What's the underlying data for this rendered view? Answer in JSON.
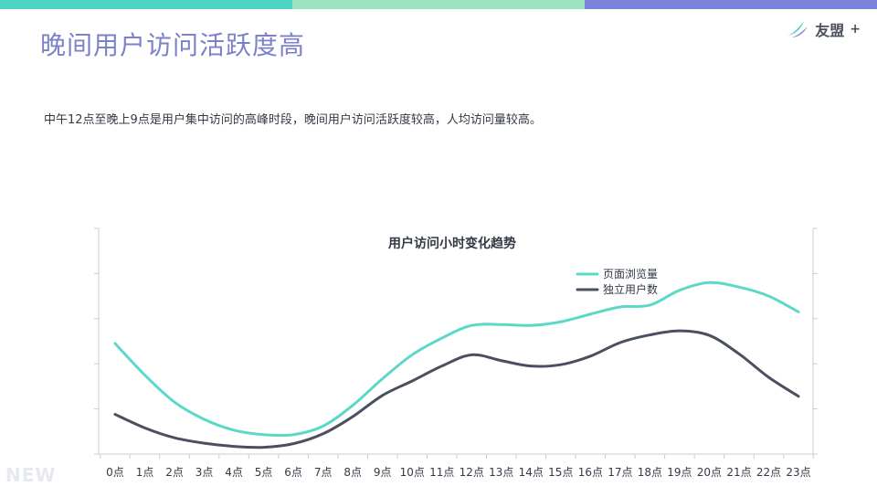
{
  "header": {
    "title": "晚间用户访问活跃度高",
    "brand": "友盟",
    "brand_plus": "+",
    "top_bar_colors": [
      "#4fd3c4",
      "#9be3bf",
      "#7b82dc"
    ]
  },
  "description": "中午12点至晚上9点是用户集中访问的高峰时段，晚间用户访问活跃度较高，人均访问量较高。",
  "chart_data": {
    "type": "line",
    "title": "用户访问小时变化趋势",
    "categories": [
      "0点",
      "1点",
      "2点",
      "3点",
      "4点",
      "5点",
      "6点",
      "7点",
      "8点",
      "9点",
      "10点",
      "11点",
      "12点",
      "13点",
      "14点",
      "15点",
      "16点",
      "17点",
      "18点",
      "19点",
      "20点",
      "21点",
      "22点",
      "23点"
    ],
    "series": [
      {
        "name": "页面浏览量",
        "color": "#5cd8c8",
        "values": [
          2.45,
          1.75,
          1.15,
          0.77,
          0.53,
          0.43,
          0.43,
          0.62,
          1.08,
          1.67,
          2.2,
          2.57,
          2.85,
          2.87,
          2.85,
          2.93,
          3.1,
          3.26,
          3.3,
          3.63,
          3.8,
          3.7,
          3.5,
          3.15
        ]
      },
      {
        "name": "独立用户数",
        "color": "#4a5060",
        "values": [
          0.88,
          0.58,
          0.36,
          0.24,
          0.17,
          0.15,
          0.23,
          0.45,
          0.83,
          1.3,
          1.62,
          1.95,
          2.2,
          2.07,
          1.95,
          1.98,
          2.17,
          2.47,
          2.64,
          2.73,
          2.63,
          2.22,
          1.7,
          1.28
        ]
      }
    ],
    "ylim": [
      0,
      5
    ],
    "grid": false,
    "legend_position": "top-right"
  }
}
